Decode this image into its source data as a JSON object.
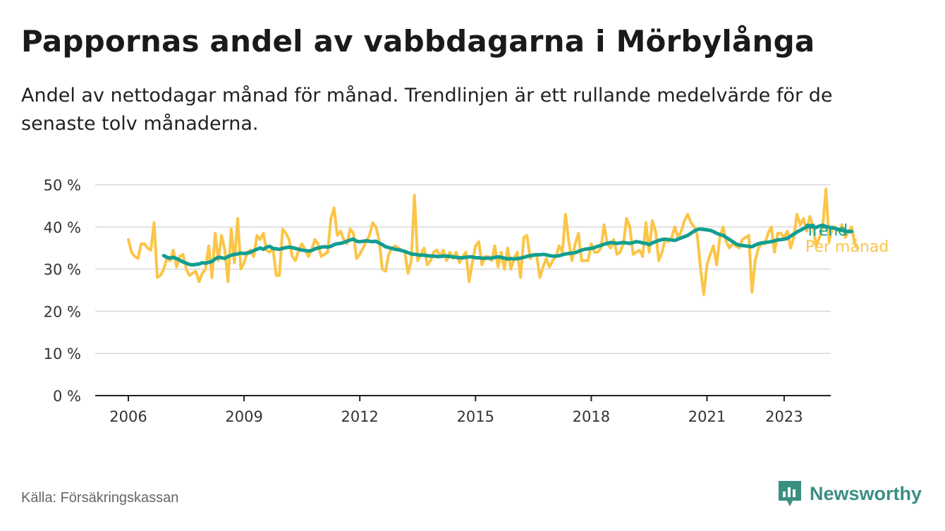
{
  "header": {
    "title": "Pappornas andel av vabbdagarna i Mörbylånga",
    "subtitle": "Andel av nettodagar månad för månad. Trendlinjen är ett rullande medelvärde för de senaste tolv månaderna."
  },
  "footer": {
    "source": "Källa: Försäkringskassan",
    "brand": "Newsworthy"
  },
  "colors": {
    "trend": "#129e91",
    "monthly": "#fbc547",
    "grid": "#d9d9d9",
    "axis": "#222222",
    "brand": "#3a8f83"
  },
  "chart_data": {
    "type": "line",
    "x_start": "2006-01",
    "x_step": "month",
    "x_ticks": [
      "2006",
      "2009",
      "2012",
      "2015",
      "2018",
      "2021",
      "2023"
    ],
    "y_ticks": [
      "0 %",
      "10 %",
      "20 %",
      "30 %",
      "40 %",
      "50 %"
    ],
    "ylim": [
      0,
      50
    ],
    "grid": true,
    "series": [
      {
        "name": "Per månad",
        "values": [
          37,
          34,
          33,
          32.5,
          36,
          36,
          35,
          34.5,
          41,
          28,
          28.5,
          30,
          32.5,
          32,
          34.5,
          30.5,
          33,
          33.5,
          30,
          28.5,
          29,
          29.5,
          27,
          29,
          30,
          35.5,
          28,
          38.5,
          32,
          38,
          34.5,
          27,
          39.5,
          31.5,
          42,
          30,
          31.5,
          34,
          34.5,
          33,
          38,
          37,
          38.5,
          34.5,
          34,
          35,
          28.5,
          28.5,
          39.5,
          38.5,
          37,
          33,
          32,
          34.5,
          36,
          34.5,
          33,
          34.5,
          37,
          36,
          33,
          33.5,
          34,
          42,
          44.5,
          38,
          39,
          37,
          36,
          39.5,
          38.5,
          32.5,
          33.5,
          35,
          36.5,
          38,
          41,
          40,
          37,
          30,
          29.5,
          33.5,
          35,
          35.5,
          35,
          34.5,
          34,
          29,
          32,
          47.5,
          32,
          33.5,
          35,
          31,
          32,
          34,
          34.5,
          33,
          34.5,
          32,
          34,
          32.5,
          34,
          31.5,
          33,
          34,
          27,
          31.5,
          35.5,
          36.5,
          31,
          33,
          33,
          32,
          35.5,
          30.5,
          34,
          30,
          35,
          30,
          32.5,
          34,
          28,
          37.5,
          38,
          32.5,
          33.5,
          33.5,
          28,
          30.5,
          32.5,
          30.5,
          32,
          33,
          35.5,
          34,
          43,
          36.5,
          32,
          36,
          38.5,
          32,
          32,
          32,
          36,
          34,
          34,
          35,
          40.5,
          36,
          35,
          37,
          33.5,
          34,
          36,
          42,
          40,
          33.5,
          34,
          34.5,
          33,
          41,
          34,
          41.5,
          39,
          32,
          34,
          37,
          36.5,
          37.5,
          40,
          37.5,
          39,
          41.5,
          43,
          41,
          40,
          38,
          30,
          24,
          31,
          33.5,
          35.5,
          31,
          37.5,
          40,
          36.5,
          35,
          36,
          35.5,
          35,
          37,
          37.5,
          38,
          24.5,
          32,
          35,
          36,
          36,
          38.5,
          40,
          34,
          38.5,
          38.5,
          37.5,
          39,
          35,
          37.5,
          43,
          40.5,
          42,
          39,
          42.5,
          40,
          35.5,
          37.5,
          40,
          49,
          36.5,
          40,
          40,
          39,
          40.5,
          37.5,
          39,
          40,
          36,
          35
        ],
        "color": "#fbc547"
      },
      {
        "name": "Trend",
        "values": [
          null,
          null,
          null,
          null,
          null,
          null,
          null,
          null,
          null,
          null,
          null,
          33.2,
          32.8,
          32.6,
          32.8,
          32.5,
          32.1,
          31.7,
          31.4,
          31.1,
          31.0,
          31.1,
          31.2,
          31.5,
          31.4,
          31.6,
          31.8,
          32.4,
          32.8,
          32.7,
          32.5,
          33.0,
          33.3,
          33.5,
          33.6,
          33.8,
          33.7,
          33.8,
          34.0,
          34.4,
          34.7,
          35.0,
          34.7,
          35.2,
          35.4,
          34.9,
          34.8,
          34.7,
          34.9,
          35.1,
          35.2,
          35.1,
          34.9,
          34.7,
          34.5,
          34.4,
          34.3,
          34.4,
          34.8,
          35.0,
          35.2,
          35.3,
          35.2,
          35.4,
          35.8,
          36.0,
          36.1,
          36.3,
          36.6,
          36.9,
          37.1,
          36.6,
          36.5,
          36.6,
          36.7,
          36.6,
          36.5,
          36.6,
          36.2,
          35.8,
          35.3,
          35.1,
          34.9,
          34.7,
          34.6,
          34.4,
          34.2,
          33.9,
          33.6,
          33.5,
          33.4,
          33.3,
          33.3,
          33.2,
          33.1,
          33.1,
          33.0,
          33.0,
          33.1,
          33.1,
          33.0,
          32.9,
          32.8,
          32.7,
          32.7,
          32.8,
          32.9,
          32.9,
          32.7,
          32.7,
          32.6,
          32.6,
          32.6,
          32.6,
          32.8,
          32.9,
          32.8,
          32.6,
          32.4,
          32.5,
          32.4,
          32.5,
          32.6,
          32.8,
          33.0,
          33.2,
          33.3,
          33.4,
          33.4,
          33.5,
          33.4,
          33.2,
          33.1,
          33.1,
          33.2,
          33.4,
          33.6,
          33.7,
          33.8,
          33.9,
          34.2,
          34.5,
          34.7,
          34.8,
          34.9,
          35.1,
          35.4,
          35.6,
          35.9,
          36.1,
          36.3,
          36.2,
          36.1,
          36.2,
          36.3,
          36.2,
          36.1,
          36.3,
          36.5,
          36.4,
          36.2,
          36.1,
          35.8,
          36.2,
          36.5,
          36.8,
          37.0,
          37.1,
          37.0,
          36.9,
          36.8,
          37.1,
          37.4,
          37.7,
          38.0,
          38.5,
          39.0,
          39.4,
          39.5,
          39.4,
          39.3,
          39.2,
          38.9,
          38.5,
          38.2,
          38.0,
          37.5,
          37.0,
          36.5,
          36.0,
          35.7,
          35.6,
          35.5,
          35.4,
          35.3,
          35.7,
          36.0,
          36.2,
          36.3,
          36.4,
          36.5,
          36.7,
          36.9,
          37.0,
          37.1,
          37.3,
          37.8,
          38.3,
          38.8,
          39.2,
          39.6,
          40.0,
          40.1,
          40.0,
          39.9,
          40.2,
          40.4,
          40.1,
          39.9,
          39.8,
          39.6,
          39.4,
          39.2,
          39.0,
          38.9,
          38.9
        ],
        "color": "#129e91"
      }
    ]
  }
}
